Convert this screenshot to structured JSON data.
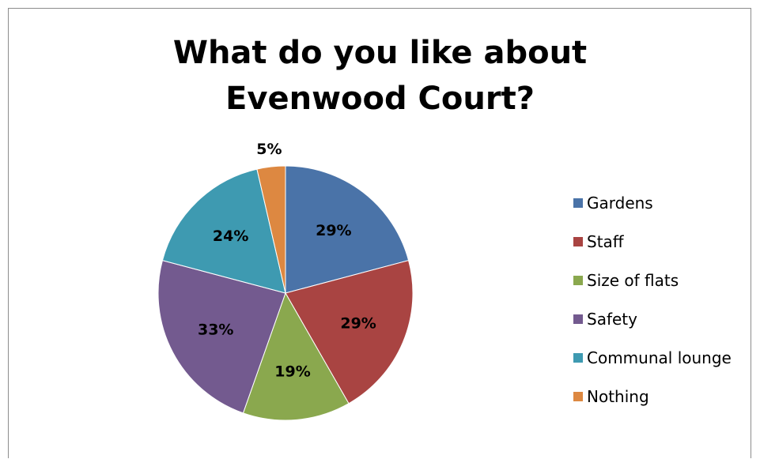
{
  "chart_data": {
    "type": "pie",
    "title": "What do you like about Evenwood Court?",
    "categories": [
      "Gardens",
      "Staff",
      "Size of flats",
      "Safety",
      "Communal lounge",
      "Nothing"
    ],
    "values": [
      29,
      29,
      19,
      33,
      24,
      5
    ],
    "labels": [
      "29%",
      "29%",
      "19%",
      "33%",
      "24%",
      "5%"
    ],
    "colors": [
      "#4a73a8",
      "#a94442",
      "#8aa84e",
      "#735a8f",
      "#3e9ab1",
      "#dd8841"
    ],
    "legend_position": "right"
  }
}
